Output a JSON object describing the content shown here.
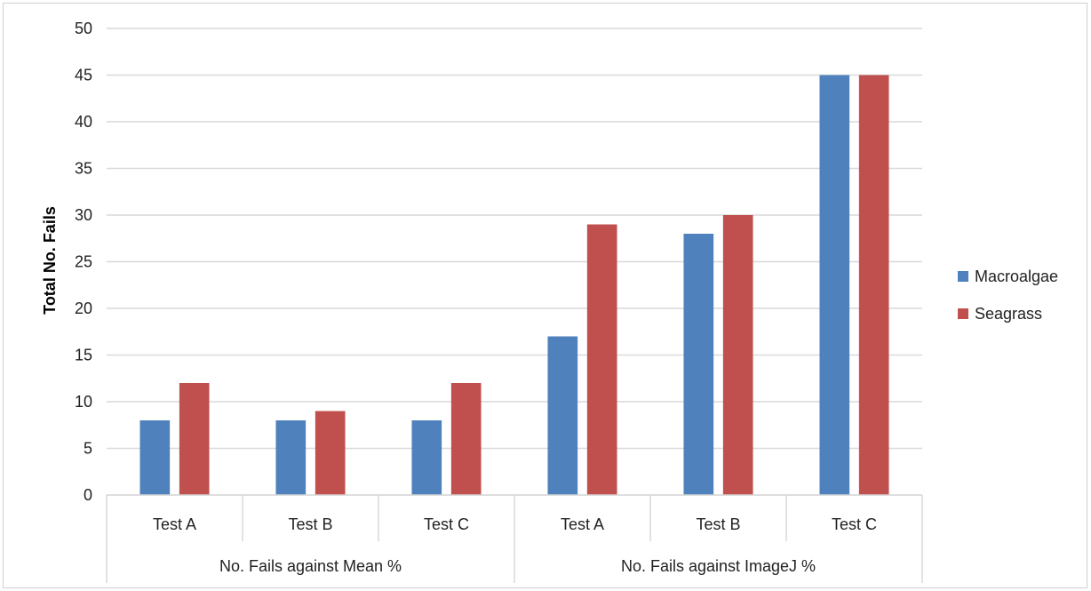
{
  "chart_data": {
    "type": "bar",
    "title": "",
    "ylabel": "Total No. Fails",
    "xlabel": "",
    "ylim": [
      0,
      50
    ],
    "ytick_step": 5,
    "grid": "horizontal",
    "legend_position": "right",
    "groups": [
      {
        "label": "No. Fails against Mean %",
        "categories": [
          "Test A",
          "Test B",
          "Test C"
        ]
      },
      {
        "label": "No. Fails against ImageJ %",
        "categories": [
          "Test A",
          "Test B",
          "Test C"
        ]
      }
    ],
    "categories": [
      "Test A",
      "Test B",
      "Test C",
      "Test A",
      "Test B",
      "Test C"
    ],
    "series": [
      {
        "name": "Macroalgae",
        "color": "#4f81bd",
        "values": [
          8,
          8,
          8,
          17,
          28,
          45
        ]
      },
      {
        "name": "Seagrass",
        "color": "#c0504d",
        "values": [
          12,
          9,
          12,
          29,
          30,
          45
        ]
      }
    ]
  }
}
